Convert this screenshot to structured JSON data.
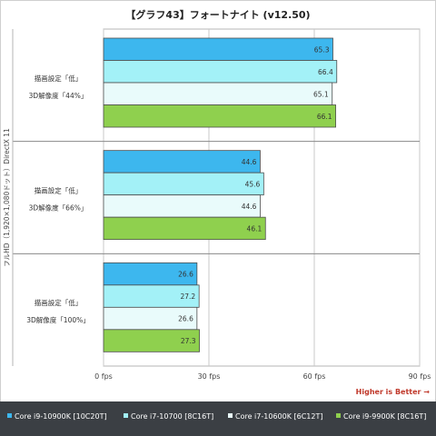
{
  "title": "【グラフ43】フォートナイト (v12.50)",
  "colors": {
    "frame": "#cfcfcf",
    "legend_bg": "#3b3f44",
    "higher_is_better": "#c0392b"
  },
  "higher_is_better": "Higher is Better →",
  "chart_data": {
    "type": "bar",
    "orientation": "horizontal",
    "title": "【グラフ43】フォートナイト (v12.50)",
    "ylabel": "フルHD（1,920×1,080ドット）DirectX 11",
    "xlabel": "",
    "xlim": [
      0,
      90
    ],
    "xticks": [
      0,
      30,
      60,
      90
    ],
    "xtick_labels": [
      "0 fps",
      "30 fps",
      "60 fps",
      "90 fps"
    ],
    "grid": true,
    "legend_placement": "bottom",
    "groups": [
      {
        "label_line1": "描画設定「低」",
        "label_line2": "3D解像度「44%」"
      },
      {
        "label_line1": "描画設定「低」",
        "label_line2": "3D解像度「66%」"
      },
      {
        "label_line1": "描画設定「低」",
        "label_line2": "3D解像度「100%」"
      }
    ],
    "series": [
      {
        "name": "Core i9-10900K [10C20T]",
        "color": "#3db7ee",
        "values": [
          65.3,
          44.6,
          26.6
        ],
        "value_labels": [
          "65.3",
          "44.6",
          "26.6"
        ]
      },
      {
        "name": "Core i7-10700 [8C16T]",
        "color": "#a3f1f7",
        "values": [
          66.4,
          45.6,
          27.2
        ],
        "value_labels": [
          "66.4",
          "45.6",
          "27.2"
        ]
      },
      {
        "name": "Core i7-10600K [6C12T]",
        "color": "#e9fbfb",
        "values": [
          65.1,
          44.6,
          26.6
        ],
        "value_labels": [
          "65.1",
          "44.6",
          "26.6"
        ]
      },
      {
        "name": "Core i9-9900K [8C16T]",
        "color": "#8fd04e",
        "values": [
          66.1,
          46.1,
          27.3
        ],
        "value_labels": [
          "66.1",
          "46.1",
          "27.3"
        ]
      }
    ]
  }
}
